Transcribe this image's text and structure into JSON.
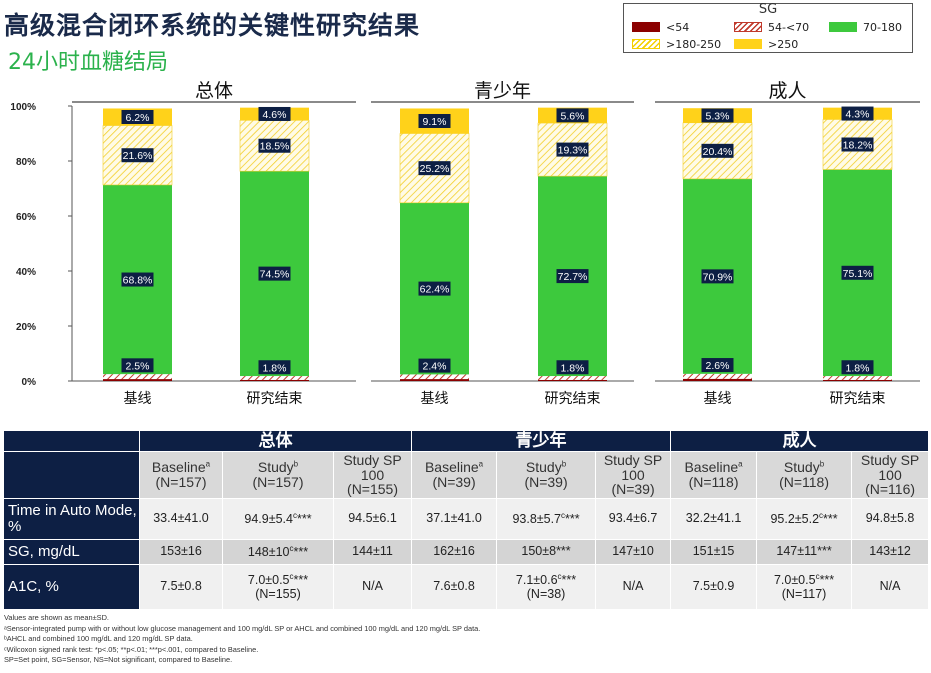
{
  "header": {
    "title": "高级混合闭环系统的关键性研究结果",
    "subtitle": "24小时血糖结局"
  },
  "legend": {
    "title": "SG",
    "items": [
      {
        "key": "lt54",
        "label": "<54",
        "color": "#8b0000",
        "style": "solid"
      },
      {
        "key": "r54_70",
        "label": "54-<70",
        "color": "#c0392b",
        "style": "hatch"
      },
      {
        "key": "r70_180",
        "label": "70-180",
        "color": "#3dc93d",
        "style": "solid"
      },
      {
        "key": "r180_250",
        "label": ">180-250",
        "color": "#f5d000",
        "style": "hatch"
      },
      {
        "key": "gt250",
        "label": ">250",
        "color": "#ffd21a",
        "style": "solid"
      }
    ]
  },
  "chart_data": {
    "type": "bar",
    "stacked": true,
    "ylim": [
      0,
      100
    ],
    "yticks": [
      "0%",
      "20%",
      "40%",
      "60%",
      "80%",
      "100%"
    ],
    "panels": [
      {
        "title": "总体",
        "bars": [
          {
            "category": "基线",
            "lt54": 0.7,
            "r54_70": 1.8,
            "r70_180": 68.8,
            "r180_250": 21.6,
            "gt250": 6.2,
            "labels": {
              "low": "2.5%",
              "r70_180": "68.8%",
              "r180_250": "21.6%",
              "gt250": "6.2%"
            }
          },
          {
            "category": "研究结束",
            "lt54": 0.4,
            "r54_70": 1.4,
            "r70_180": 74.5,
            "r180_250": 18.5,
            "gt250": 4.6,
            "labels": {
              "low": "1.8%",
              "r70_180": "74.5%",
              "r180_250": "18.5%",
              "gt250": "4.6%"
            }
          }
        ]
      },
      {
        "title": "青少年",
        "bars": [
          {
            "category": "基线",
            "lt54": 0.7,
            "r54_70": 1.7,
            "r70_180": 62.4,
            "r180_250": 25.2,
            "gt250": 9.1,
            "labels": {
              "low": "2.4%",
              "r70_180": "62.4%",
              "r180_250": "25.2%",
              "gt250": "9.1%"
            }
          },
          {
            "category": "研究结束",
            "lt54": 0.4,
            "r54_70": 1.4,
            "r70_180": 72.7,
            "r180_250": 19.3,
            "gt250": 5.6,
            "labels": {
              "low": "1.8%",
              "r70_180": "72.7%",
              "r180_250": "19.3%",
              "gt250": "5.6%"
            }
          }
        ]
      },
      {
        "title": "成人",
        "bars": [
          {
            "category": "基线",
            "lt54": 0.8,
            "r54_70": 1.8,
            "r70_180": 70.9,
            "r180_250": 20.4,
            "gt250": 5.3,
            "labels": {
              "low": "2.6%",
              "r70_180": "70.9%",
              "r180_250": "20.4%",
              "gt250": "5.3%"
            }
          },
          {
            "category": "研究结束",
            "lt54": 0.4,
            "r54_70": 1.4,
            "r70_180": 75.1,
            "r180_250": 18.2,
            "gt250": 4.3,
            "labels": {
              "low": "1.8%",
              "r70_180": "75.1%",
              "r180_250": "18.2%",
              "gt250": "4.3%"
            }
          }
        ]
      }
    ]
  },
  "table": {
    "groups": [
      "总体",
      "青少年",
      "成人"
    ],
    "subheaders": [
      {
        "name": "Baseline",
        "sup": "a",
        "n": "(N=157)"
      },
      {
        "name": "Study",
        "sup": "b",
        "n": "(N=157)"
      },
      {
        "name": "Study SP 100",
        "sup": "",
        "n": "(N=155)"
      },
      {
        "name": "Baseline",
        "sup": "a",
        "n": "(N=39)"
      },
      {
        "name": "Study",
        "sup": "b",
        "n": "(N=39)"
      },
      {
        "name": "Study SP 100",
        "sup": "",
        "n": "(N=39)"
      },
      {
        "name": "Baseline",
        "sup": "a",
        "n": "(N=118)"
      },
      {
        "name": "Study",
        "sup": "b",
        "n": "(N=118)"
      },
      {
        "name": "Study SP 100",
        "sup": "",
        "n": "(N=116)"
      }
    ],
    "rows": [
      {
        "label": "Time in Auto Mode, %",
        "cells": [
          {
            "v": "33.4±41.0"
          },
          {
            "v": "94.9±5.4",
            "sup": "c",
            "stars": "***"
          },
          {
            "v": "94.5±6.1"
          },
          {
            "v": "37.1±41.0"
          },
          {
            "v": "93.8±5.7",
            "sup": "c",
            "stars": "***"
          },
          {
            "v": "93.4±6.7"
          },
          {
            "v": "32.2±41.1"
          },
          {
            "v": "95.2±5.2",
            "sup": "c",
            "stars": "***"
          },
          {
            "v": "94.8±5.8"
          }
        ]
      },
      {
        "label": "SG, mg/dL",
        "cells": [
          {
            "v": "153±16"
          },
          {
            "v": "148±10",
            "sup": "c",
            "stars": "***"
          },
          {
            "v": "144±11"
          },
          {
            "v": "162±16"
          },
          {
            "v": "150±8",
            "sup": "",
            "stars": "***"
          },
          {
            "v": "147±10"
          },
          {
            "v": "151±15"
          },
          {
            "v": "147±11",
            "sup": "",
            "stars": "***"
          },
          {
            "v": "143±12"
          }
        ]
      },
      {
        "label": "A1C, %",
        "cells": [
          {
            "v": "7.5±0.8"
          },
          {
            "v": "7.0±0.5",
            "sup": "c",
            "stars": "***",
            "n": "(N=155)"
          },
          {
            "v": "N/A"
          },
          {
            "v": "7.6±0.8"
          },
          {
            "v": "7.1±0.6",
            "sup": "c",
            "stars": "***",
            "n": "(N=38)"
          },
          {
            "v": "N/A"
          },
          {
            "v": "7.5±0.9"
          },
          {
            "v": "7.0±0.5",
            "sup": "c",
            "stars": "***",
            "n": "(N=117)"
          },
          {
            "v": "N/A"
          }
        ]
      }
    ]
  },
  "footnotes": [
    "Values are shown as mean±SD.",
    "ᵃSensor-integrated pump with or without low glucose management and 100 mg/dL SP or AHCL and combined 100 mg/dL and 120 mg/dL SP data.",
    "ᵇAHCL and combined 100 mg/dL and 120 mg/dL SP data.",
    "ᶜWilcoxon signed rank test: *p<.05; **p<.01; ***p<.001, compared to Baseline.",
    "SP=Set point, SG=Sensor, NS=Not significant, compared to Baseline."
  ]
}
